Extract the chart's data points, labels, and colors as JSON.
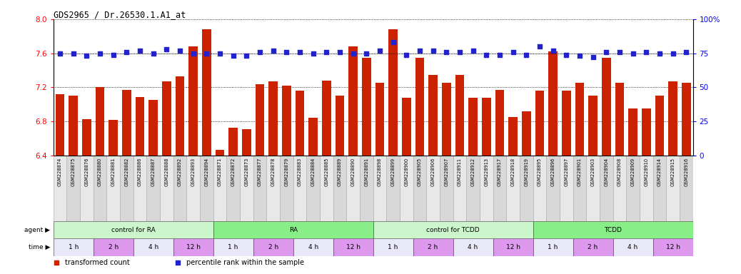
{
  "title": "GDS2965 / Dr.26530.1.A1_at",
  "bar_color": "#cc2200",
  "dot_color": "#2222cc",
  "sample_labels": [
    "GSM228874",
    "GSM228875",
    "GSM228876",
    "GSM228880",
    "GSM228881",
    "GSM228882",
    "GSM228886",
    "GSM228887",
    "GSM228888",
    "GSM228892",
    "GSM228893",
    "GSM228894",
    "GSM228871",
    "GSM228872",
    "GSM228873",
    "GSM228877",
    "GSM228878",
    "GSM228879",
    "GSM228883",
    "GSM228884",
    "GSM228885",
    "GSM228889",
    "GSM228890",
    "GSM228891",
    "GSM228898",
    "GSM228899",
    "GSM228900",
    "GSM228905",
    "GSM228906",
    "GSM228907",
    "GSM228911",
    "GSM228912",
    "GSM228913",
    "GSM228917",
    "GSM228918",
    "GSM228919",
    "GSM228895",
    "GSM228896",
    "GSM228897",
    "GSM228901",
    "GSM228903",
    "GSM228904",
    "GSM228908",
    "GSM228909",
    "GSM228910",
    "GSM228914",
    "GSM228915",
    "GSM228916"
  ],
  "bar_values": [
    7.12,
    7.1,
    6.83,
    7.2,
    6.82,
    7.17,
    7.09,
    7.05,
    7.27,
    7.33,
    7.68,
    7.88,
    6.47,
    6.73,
    6.71,
    7.24,
    7.27,
    7.22,
    7.16,
    6.84,
    7.28,
    7.1,
    7.68,
    7.55,
    7.25,
    7.88,
    7.08,
    7.55,
    7.35,
    7.25,
    7.35,
    7.08,
    7.08,
    7.17,
    6.85,
    6.92,
    7.16,
    7.62,
    7.16,
    7.25,
    7.1,
    7.55,
    7.25,
    6.95,
    6.95,
    7.1,
    7.27,
    7.25
  ],
  "percentile_values": [
    75,
    75,
    73,
    75,
    74,
    76,
    77,
    75,
    78,
    77,
    75,
    75,
    75,
    73,
    73,
    76,
    77,
    76,
    76,
    75,
    76,
    76,
    75,
    75,
    77,
    83,
    74,
    77,
    77,
    76,
    76,
    77,
    74,
    74,
    76,
    74,
    80,
    77,
    74,
    73,
    72,
    76,
    76,
    75,
    76,
    75,
    75,
    76
  ],
  "ylim_left": [
    6.4,
    8.0
  ],
  "ylim_right": [
    0,
    100
  ],
  "yticks_left": [
    6.4,
    6.8,
    7.2,
    7.6,
    8.0
  ],
  "yticks_right": [
    0,
    25,
    50,
    75,
    100
  ],
  "agent_groups": [
    {
      "label": "control for RA",
      "start": 0,
      "end": 11,
      "color": "#ccf5cc"
    },
    {
      "label": "RA",
      "start": 12,
      "end": 23,
      "color": "#88ee88"
    },
    {
      "label": "control for TCDD",
      "start": 24,
      "end": 35,
      "color": "#ccf5cc"
    },
    {
      "label": "TCDD",
      "start": 36,
      "end": 47,
      "color": "#88ee88"
    }
  ],
  "time_groups": [
    {
      "label": "1 h",
      "start": 0,
      "end": 2,
      "color": "#e8e8f8"
    },
    {
      "label": "2 h",
      "start": 3,
      "end": 5,
      "color": "#dd99ee"
    },
    {
      "label": "4 h",
      "start": 6,
      "end": 8,
      "color": "#e8e8f8"
    },
    {
      "label": "12 h",
      "start": 9,
      "end": 11,
      "color": "#dd99ee"
    },
    {
      "label": "1 h",
      "start": 12,
      "end": 14,
      "color": "#e8e8f8"
    },
    {
      "label": "2 h",
      "start": 15,
      "end": 17,
      "color": "#dd99ee"
    },
    {
      "label": "4 h",
      "start": 18,
      "end": 20,
      "color": "#e8e8f8"
    },
    {
      "label": "12 h",
      "start": 21,
      "end": 23,
      "color": "#dd99ee"
    },
    {
      "label": "1 h",
      "start": 24,
      "end": 26,
      "color": "#e8e8f8"
    },
    {
      "label": "2 h",
      "start": 27,
      "end": 29,
      "color": "#dd99ee"
    },
    {
      "label": "4 h",
      "start": 30,
      "end": 32,
      "color": "#e8e8f8"
    },
    {
      "label": "12 h",
      "start": 33,
      "end": 35,
      "color": "#dd99ee"
    },
    {
      "label": "1 h",
      "start": 36,
      "end": 38,
      "color": "#e8e8f8"
    },
    {
      "label": "2 h",
      "start": 39,
      "end": 41,
      "color": "#dd99ee"
    },
    {
      "label": "4 h",
      "start": 42,
      "end": 44,
      "color": "#e8e8f8"
    },
    {
      "label": "12 h",
      "start": 45,
      "end": 47,
      "color": "#dd99ee"
    }
  ],
  "legend_items": [
    {
      "label": "transformed count",
      "color": "#cc2200"
    },
    {
      "label": "percentile rank within the sample",
      "color": "#2222cc"
    }
  ],
  "label_box_color_odd": "#d8d8d8",
  "label_box_color_even": "#e8e8e8"
}
